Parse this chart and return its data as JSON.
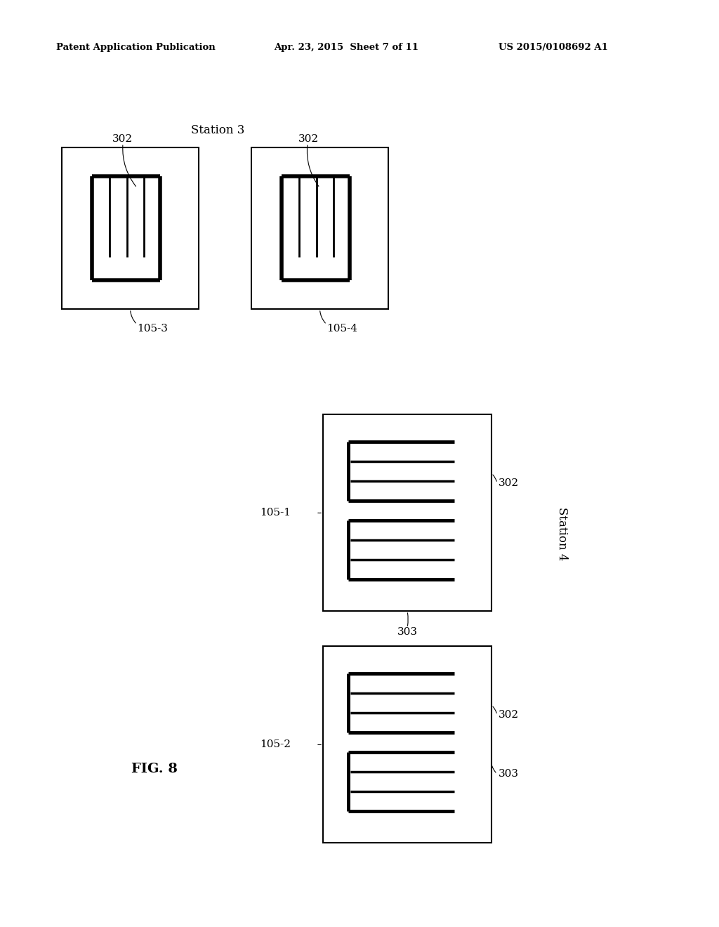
{
  "bg_color": "#ffffff",
  "header_left": "Patent Application Publication",
  "header_mid": "Apr. 23, 2015  Sheet 7 of 11",
  "header_right": "US 2015/0108692 A1",
  "fig_label": "FIG. 8",
  "station3_label": "Station 3",
  "station4_label": "Station 4"
}
